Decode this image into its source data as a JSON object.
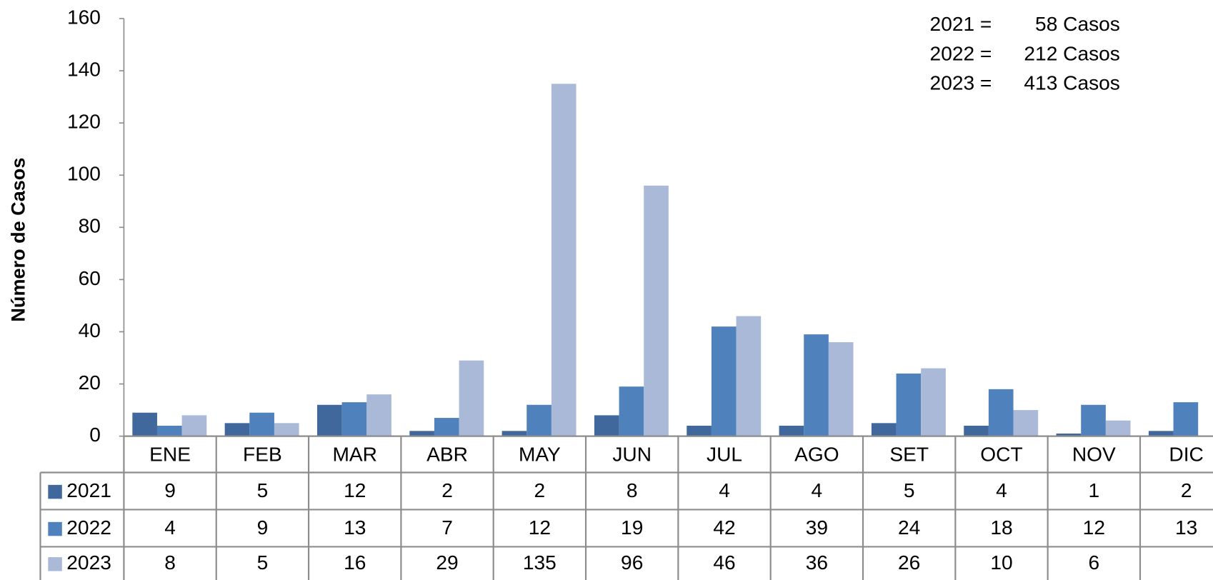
{
  "chart_data": {
    "type": "bar",
    "y_label": "Número de Casos",
    "categories": [
      "ENE",
      "FEB",
      "MAR",
      "ABR",
      "MAY",
      "JUN",
      "JUL",
      "AGO",
      "SET",
      "OCT",
      "NOV",
      "DIC"
    ],
    "series": [
      {
        "name": "2021",
        "color": "#41689c",
        "values": [
          9,
          5,
          12,
          2,
          2,
          8,
          4,
          4,
          5,
          4,
          1,
          2
        ]
      },
      {
        "name": "2022",
        "color": "#4f81bd",
        "values": [
          4,
          9,
          13,
          7,
          12,
          19,
          42,
          39,
          24,
          18,
          12,
          13
        ]
      },
      {
        "name": "2023",
        "color": "#aab9d7",
        "values": [
          8,
          5,
          16,
          29,
          135,
          96,
          46,
          36,
          26,
          10,
          6,
          null
        ]
      }
    ],
    "ylim": [
      0,
      160
    ],
    "yticks": [
      0,
      20,
      40,
      60,
      80,
      100,
      120,
      140,
      160
    ],
    "annotations": [
      {
        "label": "2021 =",
        "value": "58 Casos"
      },
      {
        "label": "2022 =",
        "value": "212 Casos"
      },
      {
        "label": "2023 =",
        "value": "413 Casos"
      }
    ],
    "data_table": true
  }
}
